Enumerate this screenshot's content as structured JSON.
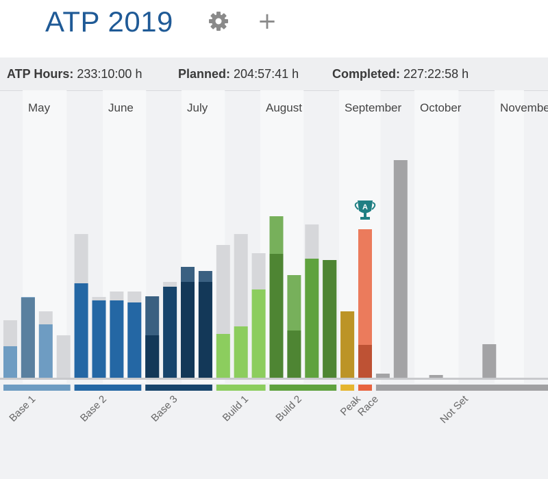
{
  "header": {
    "title": "ATP 2019",
    "settings_icon": "gear-icon",
    "add_icon": "plus-icon",
    "add_glyph": "+"
  },
  "stats": [
    {
      "label": "ATP Hours:",
      "value": "233:10:00 h"
    },
    {
      "label": "Planned:",
      "value": "204:57:41 h"
    },
    {
      "label": "Completed:",
      "value": "227:22:58 h"
    }
  ],
  "chart_data": {
    "type": "bar",
    "months": [
      "May",
      "June",
      "July",
      "August",
      "September",
      "October",
      "November"
    ],
    "race_icon": "trophy-icon",
    "race_icon_letter": "A",
    "periods": [
      {
        "name": "Base 1",
        "color": "#6e9cc2"
      },
      {
        "name": "Base 2",
        "color": "#2467a4"
      },
      {
        "name": "Base 3",
        "color": "#17446b"
      },
      {
        "name": "Build 1",
        "color": "#8ccd5e"
      },
      {
        "name": "Build 2",
        "color": "#5fa23e"
      },
      {
        "name": "Peak",
        "color": "#e5b52e"
      },
      {
        "name": "Race",
        "color": "#e8643f"
      },
      {
        "name": "Not Set",
        "color": "#a0a0a2"
      }
    ],
    "weeks": [
      {
        "period": "Base 1",
        "planned": 84,
        "completed": 46
      },
      {
        "period": "Base 1",
        "planned": 117,
        "completed": 118
      },
      {
        "period": "Base 1",
        "planned": 97,
        "completed": 78
      },
      {
        "period": "Base 1",
        "planned": 62,
        "completed": 0
      },
      {
        "period": "Base 2",
        "planned": 210,
        "completed": 138
      },
      {
        "period": "Base 2",
        "planned": 118,
        "completed": 113
      },
      {
        "period": "Base 2",
        "planned": 126,
        "completed": 113
      },
      {
        "period": "Base 2",
        "planned": 126,
        "completed": 110
      },
      {
        "period": "Base 3",
        "planned": 62,
        "completed": 119
      },
      {
        "period": "Base 3",
        "planned": 140,
        "completed": 133
      },
      {
        "period": "Base 3",
        "planned": 140,
        "completed": 162
      },
      {
        "period": "Base 3",
        "planned": 140,
        "completed": 156
      },
      {
        "period": "Build 1",
        "planned": 194,
        "completed": 64
      },
      {
        "period": "Build 1",
        "planned": 210,
        "completed": 75
      },
      {
        "period": "Build 1",
        "planned": 182,
        "completed": 129
      },
      {
        "period": "Build 2",
        "planned": 181,
        "completed": 236
      },
      {
        "period": "Build 2",
        "planned": 69,
        "completed": 150
      },
      {
        "period": "Build 2",
        "planned": 224,
        "completed": 174
      },
      {
        "period": "Build 2",
        "planned": 172,
        "completed": 172
      },
      {
        "period": "Peak",
        "planned": 97,
        "completed": 97
      },
      {
        "period": "Race",
        "planned": 48,
        "completed": 217
      },
      {
        "period": "Not Set",
        "planned": 0,
        "completed": 6
      },
      {
        "period": "Not Set",
        "planned": 0,
        "completed": 318
      },
      {
        "period": "Not Set",
        "planned": 0,
        "completed": 0
      },
      {
        "period": "Not Set",
        "planned": 0,
        "completed": 4
      },
      {
        "period": "Not Set",
        "planned": 0,
        "completed": 0
      },
      {
        "period": "Not Set",
        "planned": 0,
        "completed": 0
      },
      {
        "period": "Not Set",
        "planned": 0,
        "completed": 49
      }
    ]
  }
}
